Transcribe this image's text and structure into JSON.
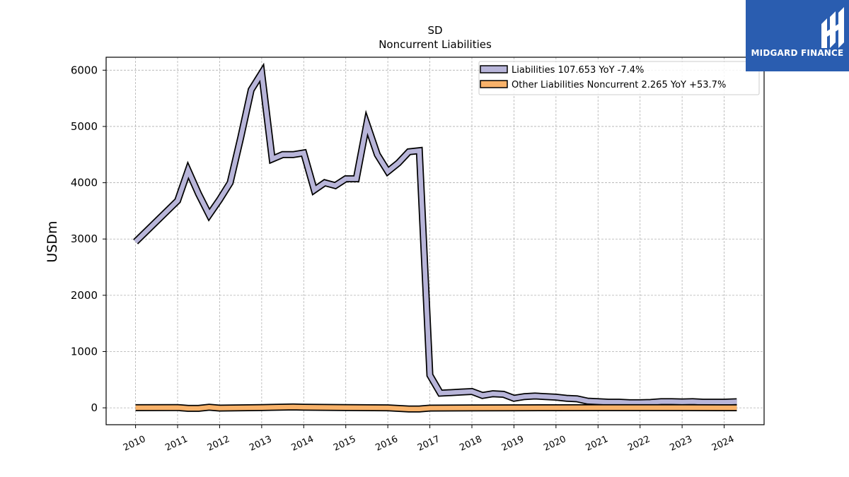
{
  "logo": {
    "text": "MIDGARD FINANCE",
    "icon": "midgard-logo-icon",
    "color": "#2a5db0"
  },
  "chart_data": {
    "type": "area",
    "title": "SD",
    "subtitle": "Noncurrent  Liabilities",
    "ylabel": "USDm",
    "xlabel": "",
    "ylim": [
      -300,
      6230
    ],
    "xlim": [
      2009.3,
      2024.95
    ],
    "yticks": [
      0,
      1000,
      2000,
      3000,
      4000,
      5000,
      6000
    ],
    "xticks": [
      "2010",
      "2011",
      "2012",
      "2013",
      "2014",
      "2015",
      "2016",
      "2017",
      "2018",
      "2019",
      "2020",
      "2021",
      "2022",
      "2023",
      "2024"
    ],
    "grid": true,
    "legend_position": "top-right",
    "series": [
      {
        "name": "Liabilities  107.653 YoY -7.4%",
        "color": "#b8b5d9",
        "x": [
          2010.0,
          2011.0,
          2011.25,
          2011.5,
          2011.75,
          2012.0,
          2012.25,
          2012.5,
          2012.75,
          2013.0,
          2013.25,
          2013.5,
          2013.75,
          2014.0,
          2014.25,
          2014.5,
          2014.75,
          2015.0,
          2015.25,
          2015.5,
          2015.75,
          2016.0,
          2016.25,
          2016.5,
          2016.75,
          2017.0,
          2017.25,
          2017.5,
          2017.75,
          2018.0,
          2018.25,
          2018.5,
          2018.75,
          2019.0,
          2019.25,
          2019.5,
          2019.75,
          2020.0,
          2020.25,
          2020.5,
          2020.75,
          2021.0,
          2021.25,
          2021.5,
          2021.75,
          2022.0,
          2022.25,
          2022.5,
          2022.75,
          2023.0,
          2023.25,
          2023.5,
          2023.75,
          2024.0,
          2024.3
        ],
        "values": [
          2950,
          3680,
          4220,
          3800,
          3430,
          3700,
          4000,
          4800,
          5650,
          5950,
          4420,
          4500,
          4500,
          4530,
          3870,
          4000,
          3950,
          4070,
          4070,
          5050,
          4500,
          4200,
          4350,
          4550,
          4570,
          580,
          260,
          270,
          280,
          290,
          220,
          250,
          240,
          170,
          200,
          210,
          200,
          190,
          170,
          160,
          120,
          110,
          100,
          100,
          90,
          90,
          95,
          110,
          110,
          105,
          110,
          100,
          100,
          100,
          108
        ]
      },
      {
        "name": "Other Liabilities Noncurrent  2.265 YoY +53.7%",
        "color": "#f8b26a",
        "x": [
          2010.0,
          2011.0,
          2011.25,
          2011.5,
          2011.75,
          2012.0,
          2013.0,
          2013.75,
          2014.0,
          2015.0,
          2016.0,
          2016.5,
          2016.75,
          2017.0,
          2018.0,
          2019.0,
          2020.0,
          2021.0,
          2022.0,
          2023.0,
          2024.3
        ],
        "values": [
          3,
          5,
          -10,
          -10,
          10,
          -5,
          5,
          15,
          10,
          5,
          0,
          -20,
          -20,
          -5,
          -3,
          0,
          2,
          3,
          3,
          3,
          2
        ]
      }
    ]
  }
}
